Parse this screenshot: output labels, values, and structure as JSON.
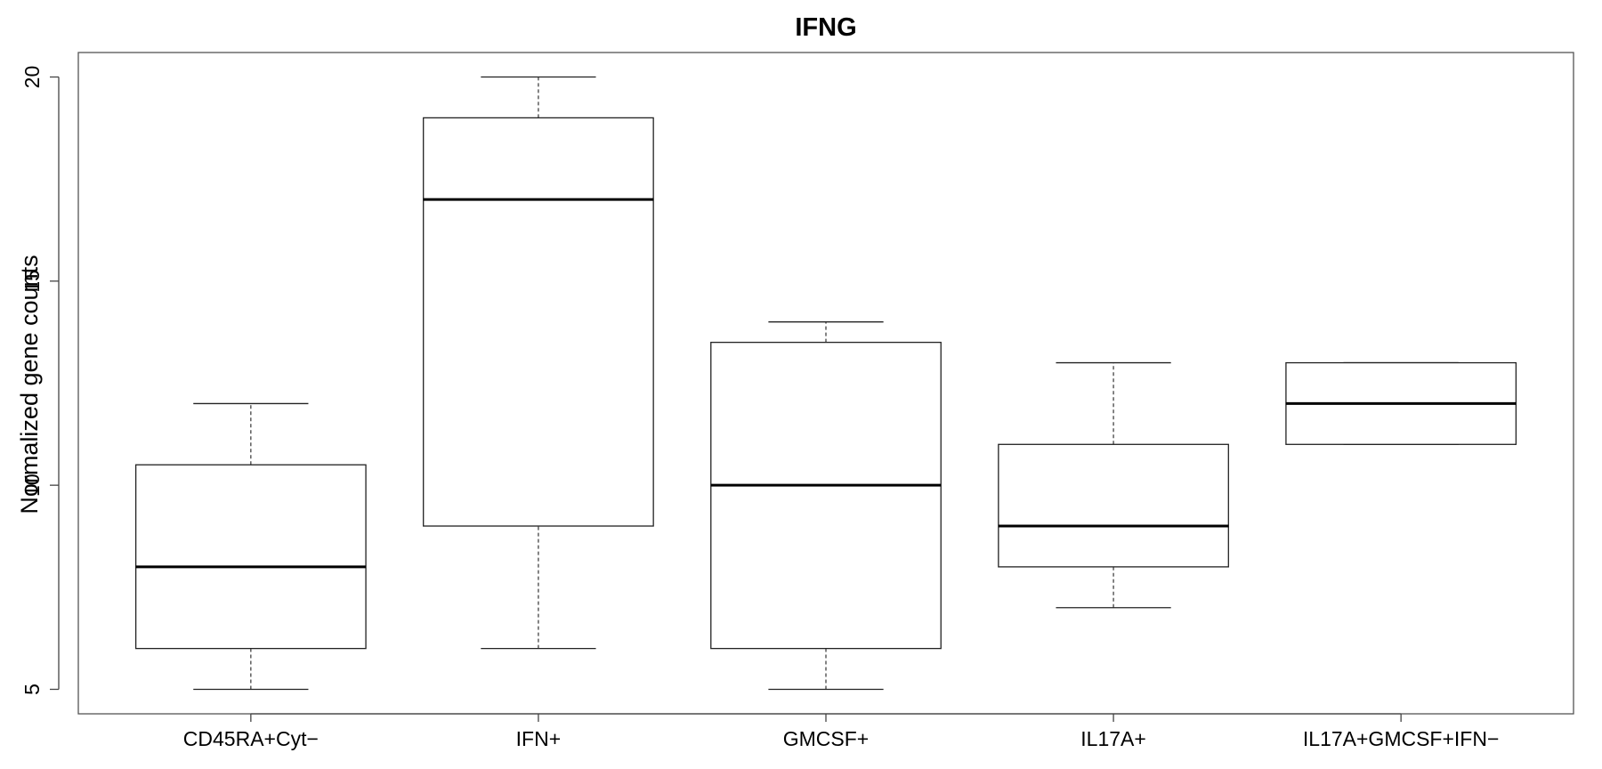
{
  "chart_data": {
    "type": "box",
    "title": "IFNG",
    "xlabel": "",
    "ylabel": "Normalized gene counts",
    "ylim": [
      4.4,
      20.6
    ],
    "yticks": [
      5,
      10,
      15,
      20
    ],
    "ytick_labels": [
      "5",
      "10",
      "15",
      "20"
    ],
    "grid": false,
    "categories": [
      "CD45RA+Cyt−",
      "IFN+",
      "GMCSF+",
      "IL17A+",
      "IL17A+GMCSF+IFN−"
    ],
    "boxes": [
      {
        "category": "CD45RA+Cyt−",
        "whisker_low": 5,
        "q1": 6,
        "median": 8,
        "q3": 10.5,
        "whisker_high": 12
      },
      {
        "category": "IFN+",
        "whisker_low": 6,
        "q1": 9,
        "median": 17,
        "q3": 19,
        "whisker_high": 20
      },
      {
        "category": "GMCSF+",
        "whisker_low": 5,
        "q1": 6,
        "median": 10,
        "q3": 13.5,
        "whisker_high": 14
      },
      {
        "category": "IL17A+",
        "whisker_low": 7,
        "q1": 8,
        "median": 9,
        "q3": 11,
        "whisker_high": 13
      },
      {
        "category": "IL17A+GMCSF+IFN−",
        "whisker_low": 11,
        "q1": 11,
        "median": 12,
        "q3": 13,
        "whisker_high": 13
      }
    ]
  }
}
